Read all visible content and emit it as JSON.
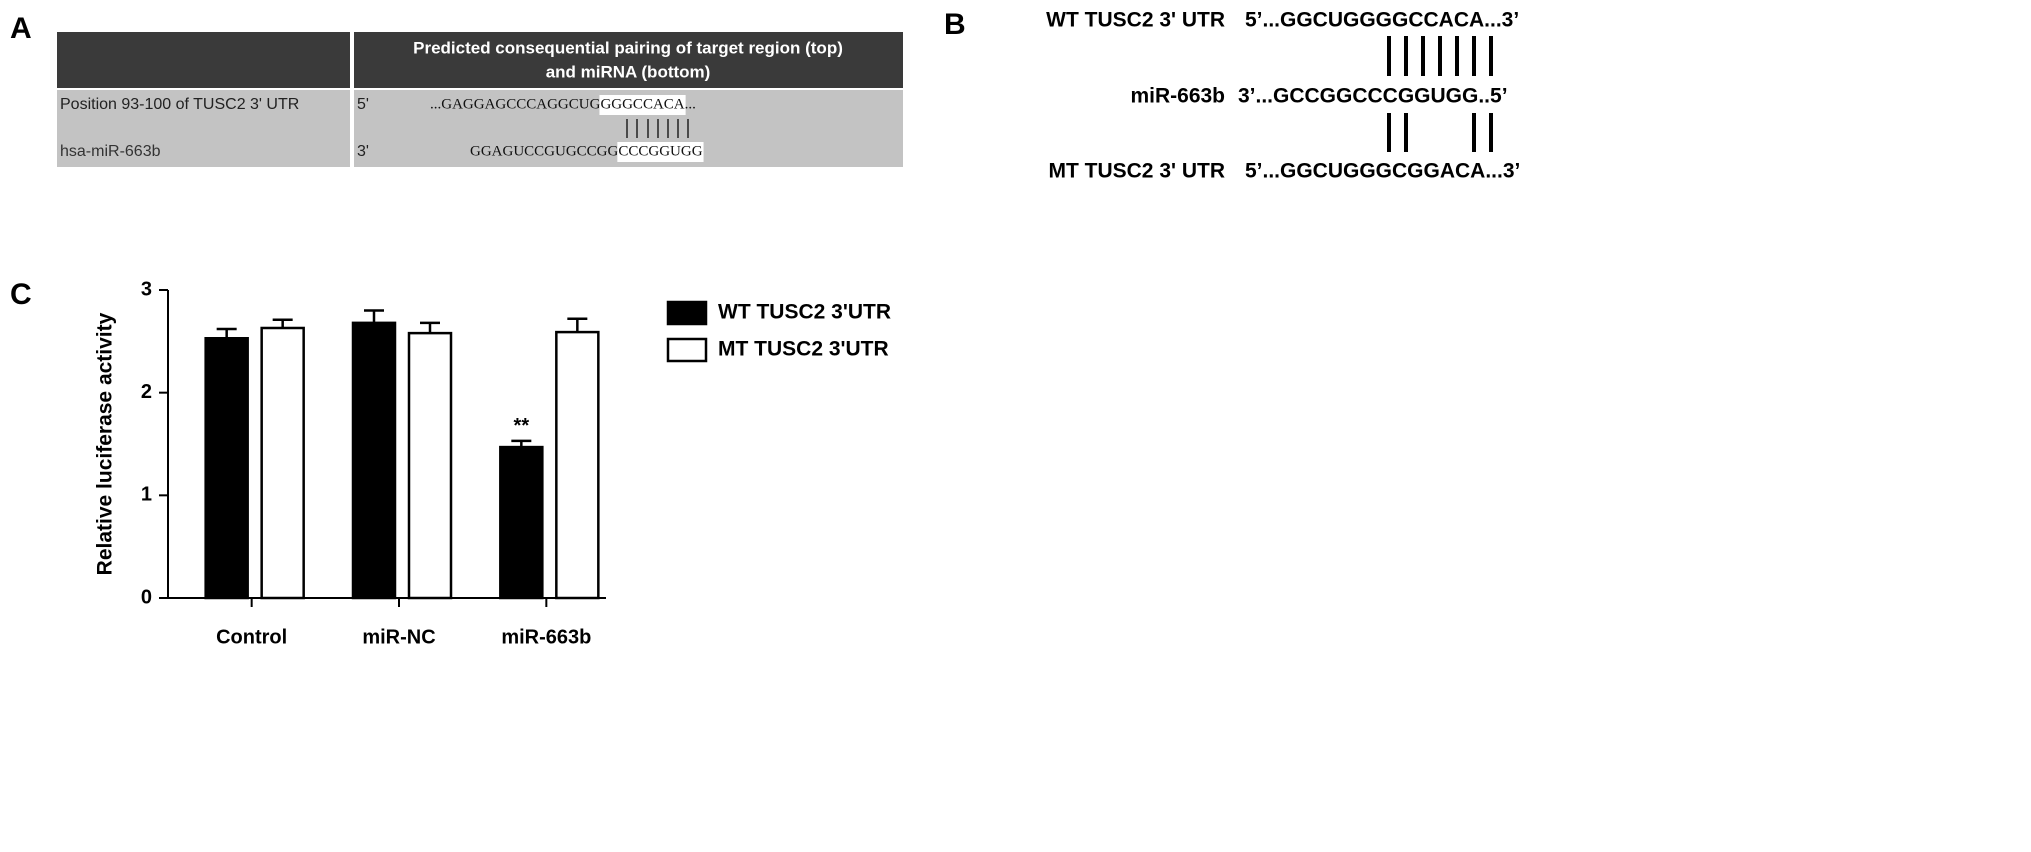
{
  "panel_labels": [
    "A",
    "B",
    "C"
  ],
  "table": {
    "header": [
      "Predicted consequential pairing of target region (top)",
      "and miRNA (bottom)"
    ],
    "rows": [
      {
        "label": "Position 93-100 of TUSC2 3' UTR",
        "end": "5'",
        "sequence": [
          "...GAGGAGCCCAGGCUG",
          "GGGCCACA",
          "..."
        ]
      },
      {
        "label": "hsa-miR-663b",
        "end": "3'",
        "sequence": [
          "GGAGUCCGUGCCGG",
          "CCCGGUGG"
        ]
      }
    ]
  },
  "alignment": {
    "rows": [
      {
        "label": "WT TUSC2 3' UTR",
        "sequence": "5’...GGCUGGGGCCACA...3’"
      },
      {
        "label": "miR-663b",
        "sequence": "3’...GCCGGCCCGGUGG..5’"
      },
      {
        "label": "MT TUSC2 3' UTR",
        "sequence": "5’...GGCUGGGCGGACA...3’"
      }
    ]
  },
  "chart_data": {
    "type": "bar",
    "ylabel": "Relative luciferase activity",
    "categories": [
      "Control",
      "miR-NC",
      "miR-663b"
    ],
    "series": [
      {
        "name": "WT TUSC2 3'UTR",
        "color": "#000000",
        "values": [
          2.53,
          2.68,
          1.47
        ],
        "errors": [
          0.09,
          0.12,
          0.06
        ]
      },
      {
        "name": "MT TUSC2 3'UTR",
        "color": "#ffffff",
        "values": [
          2.63,
          2.58,
          2.59
        ],
        "errors": [
          0.08,
          0.1,
          0.13
        ]
      }
    ],
    "ylim": [
      0,
      3
    ],
    "yticks": [
      0,
      1,
      2,
      3
    ],
    "annotations": [
      {
        "text": "**",
        "series": 0,
        "category": 2
      }
    ]
  }
}
